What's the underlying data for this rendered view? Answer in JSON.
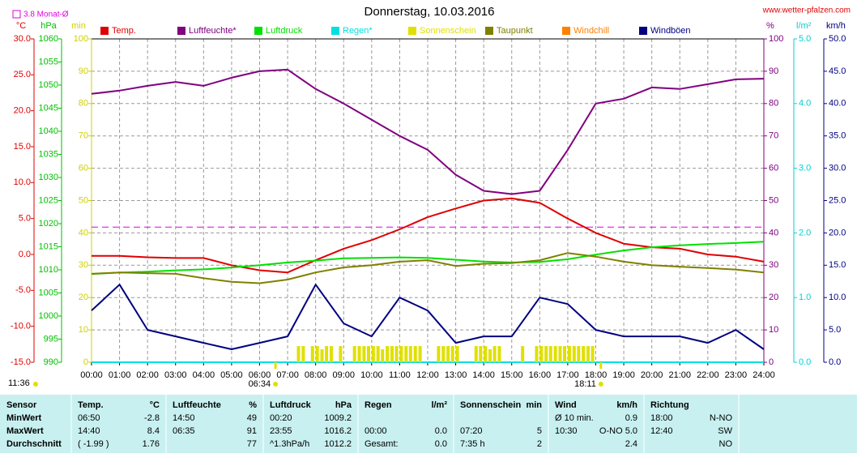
{
  "chart_data": {
    "type": "line",
    "title": "Donnerstag, 10.03.2016",
    "source": "www.wetter-pfalzen.com",
    "grid": true,
    "xlim": [
      0,
      24
    ],
    "xticks": [
      {
        "value": 0,
        "label": "00:00"
      },
      {
        "value": 1,
        "label": "01:00"
      },
      {
        "value": 2,
        "label": "02:00"
      },
      {
        "value": 3,
        "label": "03:00"
      },
      {
        "value": 4,
        "label": "04:00"
      },
      {
        "value": 5,
        "label": "05:00"
      },
      {
        "value": 6,
        "label": "06:00"
      },
      {
        "value": 7,
        "label": "07:00"
      },
      {
        "value": 8,
        "label": "08:00"
      },
      {
        "value": 9,
        "label": "09:00"
      },
      {
        "value": 10,
        "label": "10:00"
      },
      {
        "value": 11,
        "label": "11:00"
      },
      {
        "value": 12,
        "label": "12:00"
      },
      {
        "value": 13,
        "label": "13:00"
      },
      {
        "value": 14,
        "label": "14:00"
      },
      {
        "value": 15,
        "label": "15:00"
      },
      {
        "value": 16,
        "label": "16:00"
      },
      {
        "value": 17,
        "label": "17:00"
      },
      {
        "value": 18,
        "label": "18:00"
      },
      {
        "value": 19,
        "label": "19:00"
      },
      {
        "value": 20,
        "label": "20:00"
      },
      {
        "value": 21,
        "label": "21:00"
      },
      {
        "value": 22,
        "label": "22:00"
      },
      {
        "value": 23,
        "label": "23:00"
      },
      {
        "value": 24,
        "label": "24:00"
      }
    ],
    "axes": {
      "y": {
        "label": "°C",
        "color": "#e00000",
        "lim": [
          -15,
          30
        ],
        "ticks": [
          {
            "value": 30,
            "label": "30.0"
          },
          {
            "value": 25,
            "label": "25.0"
          },
          {
            "value": 20,
            "label": "20.0"
          },
          {
            "value": 15,
            "label": "15.0"
          },
          {
            "value": 10,
            "label": "10.0"
          },
          {
            "value": 5,
            "label": "5.0"
          },
          {
            "value": 0,
            "label": "0.0"
          },
          {
            "value": -5,
            "label": "-5.0"
          },
          {
            "value": -10,
            "label": "-10.0"
          },
          {
            "value": -15,
            "label": "-15.0"
          }
        ]
      },
      "y2": {
        "label": "hPa",
        "color": "#00c000",
        "lim": [
          990,
          1060
        ],
        "ticks": [
          1060,
          1055,
          1050,
          1045,
          1040,
          1035,
          1030,
          1025,
          1020,
          1015,
          1010,
          1005,
          1000,
          995,
          990
        ]
      },
      "y3": {
        "label": "min",
        "color": "#d0d000",
        "lim": [
          0,
          100
        ],
        "ticks": [
          100,
          90,
          80,
          70,
          60,
          50,
          40,
          30,
          20,
          10,
          0
        ]
      },
      "y4": {
        "label": "%",
        "color": "#800080",
        "lim": [
          0,
          100
        ],
        "ticks": [
          100,
          90,
          80,
          70,
          60,
          50,
          40,
          30,
          20,
          10,
          0
        ]
      },
      "y5": {
        "label": "l/m²",
        "color": "#00d0d0",
        "lim": [
          0,
          5
        ],
        "ticks": [
          {
            "value": 5,
            "label": "5.0"
          },
          {
            "value": 4,
            "label": "4.0"
          },
          {
            "value": 3,
            "label": "3.0"
          },
          {
            "value": 2,
            "label": "2.0"
          },
          {
            "value": 1,
            "label": "1.0"
          },
          {
            "value": 0,
            "label": "0.0"
          }
        ]
      },
      "y6": {
        "label": "km/h",
        "color": "#000080",
        "lim": [
          0,
          50
        ],
        "ticks": [
          {
            "value": 50,
            "label": "50.0"
          },
          {
            "value": 45,
            "label": "45.0"
          },
          {
            "value": 40,
            "label": "40.0"
          },
          {
            "value": 35,
            "label": "35.0"
          },
          {
            "value": 30,
            "label": "30.0"
          },
          {
            "value": 25,
            "label": "25.0"
          },
          {
            "value": 20,
            "label": "20.0"
          },
          {
            "value": 15,
            "label": "15.0"
          },
          {
            "value": 10,
            "label": "10.0"
          },
          {
            "value": 5,
            "label": "5.0"
          },
          {
            "value": 0,
            "label": "0.0"
          }
        ]
      }
    },
    "x": [
      0,
      1,
      2,
      3,
      4,
      5,
      6,
      7,
      8,
      9,
      10,
      11,
      12,
      13,
      14,
      15,
      16,
      17,
      18,
      19,
      20,
      21,
      22,
      23,
      24
    ],
    "series": [
      {
        "name": "Temp.",
        "color": "#e00000",
        "axis": "y",
        "values": [
          -0.2,
          -0.2,
          -0.4,
          -0.5,
          -0.5,
          -1.5,
          -2.2,
          -2.5,
          -0.8,
          0.8,
          2.0,
          3.5,
          5.2,
          6.4,
          7.5,
          7.8,
          7.2,
          5.0,
          3.0,
          1.5,
          1.0,
          0.8,
          0.0,
          -0.3,
          -1.0
        ]
      },
      {
        "name": "Luftfeuchte*",
        "color": "#800080",
        "axis": "y4",
        "values": [
          83,
          84,
          85.5,
          86.7,
          85.5,
          88,
          90,
          90.5,
          84.5,
          80,
          75,
          70,
          65.7,
          58,
          53,
          52,
          53,
          65.7,
          80,
          81.5,
          85,
          84.5,
          86,
          87.5,
          87.7
        ]
      },
      {
        "name": "Luftdruck",
        "color": "#00e000",
        "axis": "y2",
        "values": [
          1009.1,
          1009.4,
          1009.6,
          1009.9,
          1010.1,
          1010.5,
          1011.0,
          1011.6,
          1012.0,
          1012.5,
          1012.6,
          1012.7,
          1012.6,
          1012.2,
          1011.8,
          1011.6,
          1011.7,
          1012.3,
          1013.3,
          1014.2,
          1014.9,
          1015.3,
          1015.6,
          1015.8,
          1016.1
        ]
      },
      {
        "name": "Regen*",
        "color": "#00e0e0",
        "axis": "y5",
        "x": [
          0,
          24
        ],
        "values": [
          0,
          0
        ]
      },
      {
        "name": "Sonnenschein",
        "color": "#e0e000",
        "axis": "y3",
        "type": "bar",
        "x": [
          7.33,
          7.5,
          7.83,
          8.0,
          8.17,
          8.33,
          8.5,
          8.83,
          9.33,
          9.5,
          9.67,
          9.83,
          10.0,
          10.17,
          10.33,
          10.5,
          10.67,
          10.83,
          11.0,
          11.17,
          11.33,
          11.5,
          11.67,
          12.33,
          12.5,
          12.67,
          12.83,
          13.0,
          13.67,
          13.83,
          14.0,
          14.17,
          14.33,
          14.5,
          15.33,
          15.83,
          16.0,
          16.17,
          16.33,
          16.5,
          16.67,
          16.83,
          17.0,
          17.17,
          17.33,
          17.5,
          17.67,
          17.83
        ],
        "values": [
          5,
          5,
          5,
          5,
          4,
          5,
          5,
          5,
          5,
          5,
          5,
          5,
          5,
          5,
          4,
          5,
          5,
          5,
          5,
          5,
          5,
          5,
          5,
          5,
          5,
          5,
          5,
          5,
          5,
          5,
          5,
          4,
          5,
          5,
          5,
          5,
          5,
          5,
          5,
          5,
          5,
          5,
          5,
          5,
          5,
          5,
          5,
          5
        ]
      },
      {
        "name": "Taupunkt",
        "color": "#808000",
        "axis": "y",
        "values": [
          -2.7,
          -2.5,
          -2.6,
          -2.7,
          -3.3,
          -3.8,
          -4.0,
          -3.5,
          -2.5,
          -1.8,
          -1.5,
          -1.0,
          -0.8,
          -1.6,
          -1.3,
          -1.2,
          -0.8,
          0.2,
          -0.3,
          -1.0,
          -1.5,
          -1.7,
          -1.9,
          -2.1,
          -2.5
        ]
      },
      {
        "name": "Windchill",
        "color": "#ff8000"
      },
      {
        "name": "Windböen",
        "color": "#000080",
        "axis": "y6",
        "values": [
          8,
          12,
          5,
          4,
          3,
          2,
          3,
          4,
          12,
          6,
          4,
          10,
          8,
          3,
          4,
          4,
          10,
          9,
          5,
          4,
          4,
          4,
          3,
          5,
          2
        ]
      }
    ],
    "mean_line": {
      "label": "3.8 Monat-Ø",
      "value": 3.8,
      "axis": "y",
      "color": "#e000e0"
    },
    "sunrise": {
      "value": 6.567,
      "label": "06:34"
    },
    "sunset": {
      "value": 18.183,
      "label": "18:11"
    },
    "day_length": "11:36"
  },
  "table": {
    "columns": [
      {
        "title": "Sensor"
      },
      {
        "title": "Temp.",
        "unit": "°C"
      },
      {
        "title": "Luftfeuchte",
        "unit": "%"
      },
      {
        "title": "Luftdruck",
        "unit": "hPa"
      },
      {
        "title": "Regen",
        "unit": "l/m²"
      },
      {
        "title": "Sonnenschein",
        "unit": "min"
      },
      {
        "title": "Wind",
        "unit": "km/h"
      },
      {
        "title": "Richtung"
      }
    ],
    "rows": [
      {
        "label": "MinWert",
        "cells": [
          [
            "06:50",
            "-2.8"
          ],
          [
            "14:50",
            "49"
          ],
          [
            "00:20",
            "1009.2"
          ],
          [
            null,
            null
          ],
          [
            null,
            null
          ],
          [
            "Ø 10 min.",
            "0.9"
          ],
          [
            "18:00",
            "N-NO"
          ]
        ]
      },
      {
        "label": "MaxWert",
        "cells": [
          [
            "14:40",
            "8.4"
          ],
          [
            "06:35",
            "91"
          ],
          [
            "23:55",
            "1016.2"
          ],
          [
            "00:00",
            "0.0"
          ],
          [
            "07:20",
            "5"
          ],
          [
            "10:30",
            "O-NO 5.0"
          ],
          [
            "12:40",
            "SW"
          ]
        ]
      },
      {
        "label": "Durchschnitt",
        "cells": [
          [
            "( -1.99 )",
            "1.76"
          ],
          [
            null,
            "77"
          ],
          [
            "^1.3hPa/h",
            "1012.2"
          ],
          [
            "Gesamt:",
            "0.0"
          ],
          [
            "7:35 h",
            "2"
          ],
          [
            null,
            "2.4"
          ],
          [
            null,
            "NO"
          ]
        ]
      }
    ]
  }
}
